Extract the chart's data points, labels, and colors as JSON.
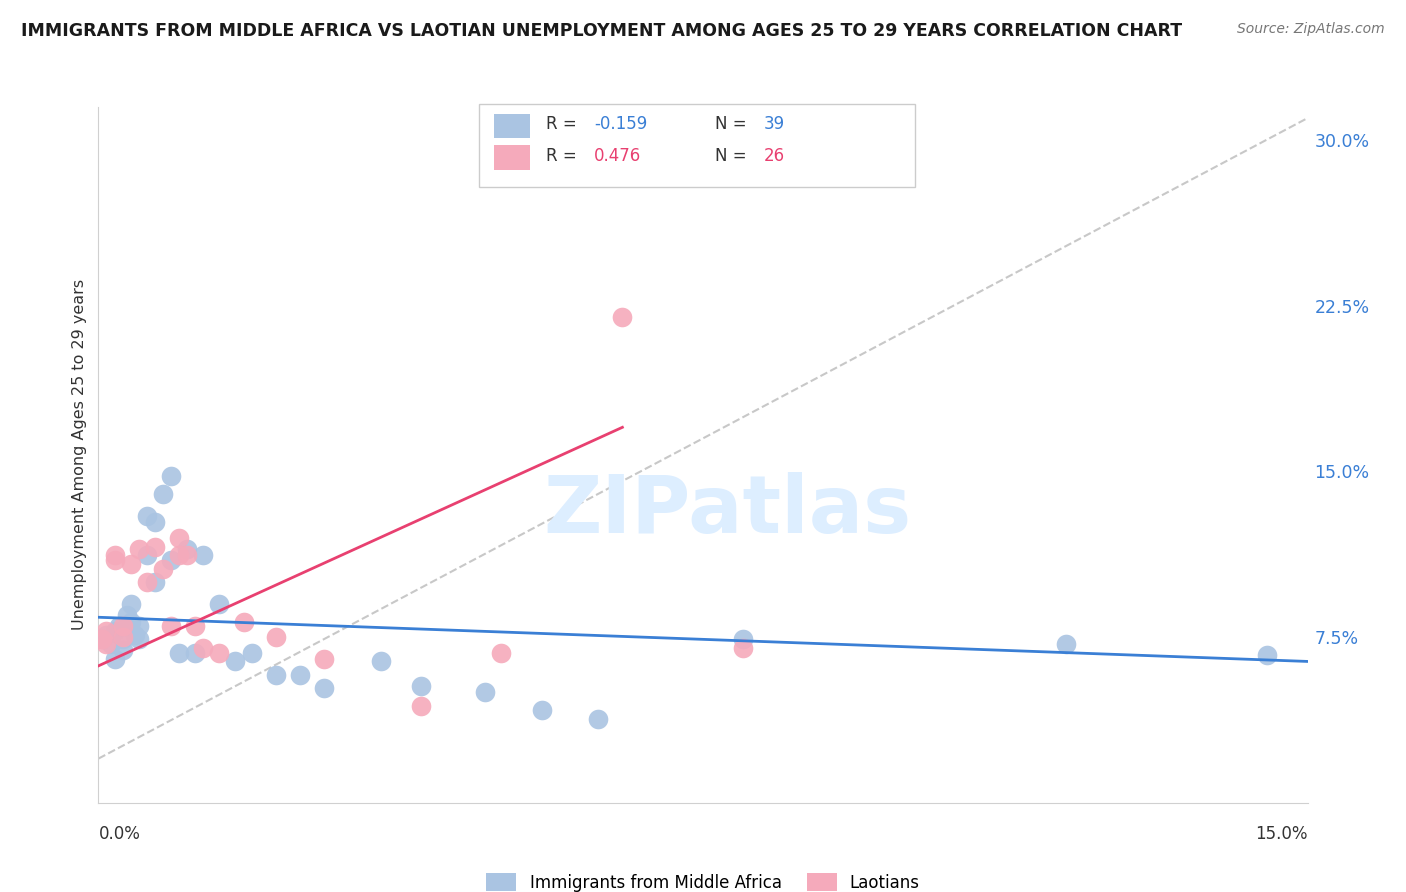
{
  "title": "IMMIGRANTS FROM MIDDLE AFRICA VS LAOTIAN UNEMPLOYMENT AMONG AGES 25 TO 29 YEARS CORRELATION CHART",
  "source": "Source: ZipAtlas.com",
  "ylabel": "Unemployment Among Ages 25 to 29 years",
  "ytick_labels": [
    "7.5%",
    "15.0%",
    "22.5%",
    "30.0%"
  ],
  "ytick_vals": [
    0.075,
    0.15,
    0.225,
    0.3
  ],
  "xlim": [
    0.0,
    0.15
  ],
  "ylim": [
    0.0,
    0.315
  ],
  "legend_blue_r": "-0.159",
  "legend_blue_n": "39",
  "legend_pink_r": "0.476",
  "legend_pink_n": "26",
  "blue_scatter_color": "#aac4e2",
  "pink_scatter_color": "#f5aabb",
  "blue_line_color": "#3a7fd5",
  "pink_line_color": "#e84070",
  "dash_line_color": "#c8c8c8",
  "watermark_color": "#ddeeff",
  "blue_label": "Immigrants from Middle Africa",
  "pink_label": "Laotians",
  "blue_scatter_x": [
    0.0005,
    0.001,
    0.0015,
    0.002,
    0.002,
    0.0025,
    0.003,
    0.003,
    0.0035,
    0.004,
    0.004,
    0.0045,
    0.005,
    0.005,
    0.006,
    0.006,
    0.007,
    0.007,
    0.008,
    0.009,
    0.009,
    0.01,
    0.011,
    0.012,
    0.013,
    0.015,
    0.017,
    0.019,
    0.022,
    0.025,
    0.028,
    0.035,
    0.04,
    0.048,
    0.055,
    0.062,
    0.08,
    0.12,
    0.145
  ],
  "blue_scatter_y": [
    0.074,
    0.076,
    0.072,
    0.078,
    0.065,
    0.08,
    0.074,
    0.069,
    0.085,
    0.082,
    0.09,
    0.076,
    0.074,
    0.08,
    0.13,
    0.112,
    0.127,
    0.1,
    0.14,
    0.148,
    0.11,
    0.068,
    0.115,
    0.068,
    0.112,
    0.09,
    0.064,
    0.068,
    0.058,
    0.058,
    0.052,
    0.064,
    0.053,
    0.05,
    0.042,
    0.038,
    0.074,
    0.072,
    0.067
  ],
  "pink_scatter_x": [
    0.0005,
    0.001,
    0.001,
    0.002,
    0.002,
    0.003,
    0.003,
    0.004,
    0.005,
    0.006,
    0.007,
    0.008,
    0.009,
    0.01,
    0.01,
    0.011,
    0.012,
    0.013,
    0.015,
    0.018,
    0.022,
    0.028,
    0.04,
    0.05,
    0.065,
    0.08
  ],
  "pink_scatter_y": [
    0.074,
    0.072,
    0.078,
    0.11,
    0.112,
    0.075,
    0.08,
    0.108,
    0.115,
    0.1,
    0.116,
    0.106,
    0.08,
    0.12,
    0.112,
    0.112,
    0.08,
    0.07,
    0.068,
    0.082,
    0.075,
    0.065,
    0.044,
    0.068,
    0.22,
    0.07
  ],
  "blue_line_x": [
    0.0,
    0.15
  ],
  "blue_line_y": [
    0.084,
    0.064
  ],
  "pink_line_x": [
    0.0,
    0.065
  ],
  "pink_line_y": [
    0.062,
    0.17
  ],
  "dash_line_x": [
    0.0,
    0.15
  ],
  "dash_line_y": [
    0.02,
    0.31
  ]
}
